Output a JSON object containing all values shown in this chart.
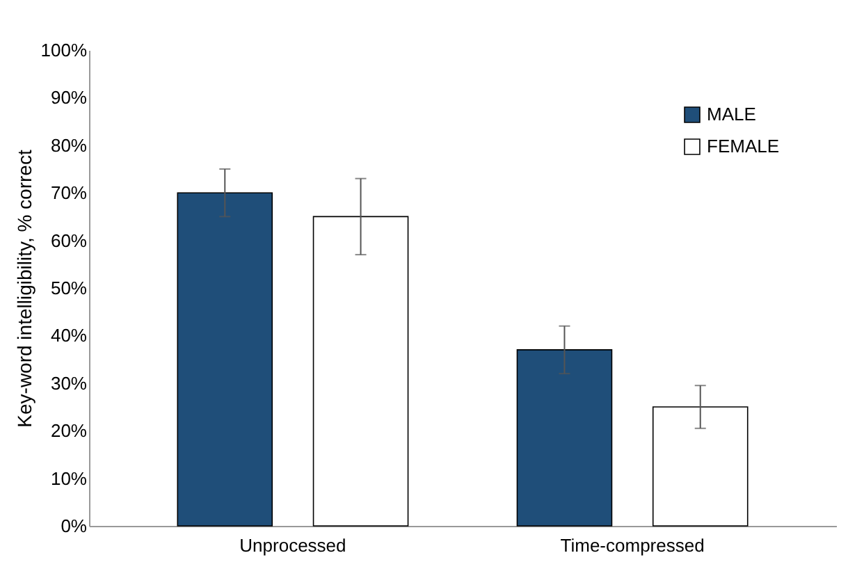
{
  "chart_data": {
    "type": "bar",
    "ylabel": "Key-word intelligibility, % correct",
    "categories": [
      "Unprocessed",
      "Time-compressed"
    ],
    "series": [
      {
        "name": "MALE",
        "color": "#1f4e79",
        "values": [
          70,
          37
        ],
        "errors": [
          5,
          5
        ]
      },
      {
        "name": "FEMALE",
        "color": "#ffffff",
        "values": [
          65,
          25
        ],
        "errors": [
          8,
          4.5
        ]
      }
    ],
    "ylim": [
      0,
      100
    ],
    "yticks": [
      {
        "value": 0,
        "label": "0%"
      },
      {
        "value": 10,
        "label": "10%"
      },
      {
        "value": 20,
        "label": "20%"
      },
      {
        "value": 30,
        "label": "30%"
      },
      {
        "value": 40,
        "label": "40%"
      },
      {
        "value": 50,
        "label": "50%"
      },
      {
        "value": 60,
        "label": "60%"
      },
      {
        "value": 70,
        "label": "70%"
      },
      {
        "value": 80,
        "label": "80%"
      },
      {
        "value": 90,
        "label": "90%"
      },
      {
        "value": 100,
        "label": "100%"
      }
    ],
    "grid": false,
    "legend": "top right"
  }
}
